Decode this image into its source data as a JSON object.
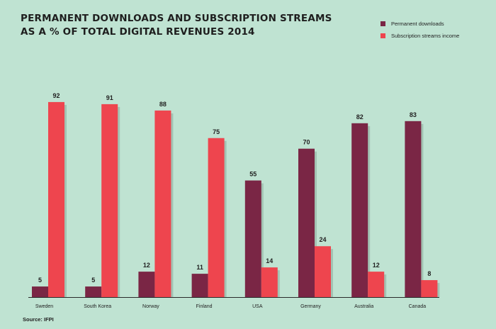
{
  "chart_data": {
    "type": "bar",
    "title": [
      "PERMANENT DOWNLOADS AND SUBSCRIPTION STREAMS",
      "AS A % OF TOTAL DIGITAL REVENUES 2014"
    ],
    "categories": [
      "Sweden",
      "South Korea",
      "Norway",
      "Finland",
      "USA",
      "Germany",
      "Australia",
      "Canada"
    ],
    "series": [
      {
        "name": "Permanent downloads",
        "color": "#7a2645",
        "values": [
          5,
          5,
          12,
          11,
          55,
          70,
          82,
          83
        ]
      },
      {
        "name": "Subscription streams income",
        "color": "#ee454e",
        "values": [
          92,
          91,
          88,
          75,
          14,
          24,
          12,
          8
        ]
      }
    ],
    "ylim": [
      0,
      100
    ],
    "xlabel": "",
    "ylabel": ""
  },
  "source": "Source: IFPI"
}
